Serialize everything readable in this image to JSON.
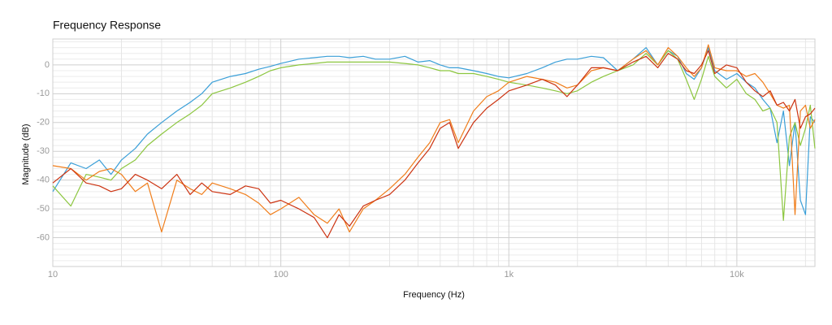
{
  "chart_data": {
    "type": "line",
    "title": "Frequency Response",
    "xlabel": "Frequency (Hz)",
    "ylabel": "Magnitude (dB)",
    "log_x": true,
    "grid": true,
    "xlim": [
      10,
      22000
    ],
    "ylim": [
      -70,
      9
    ],
    "xticks": [
      10,
      100,
      {
        "value": 1000,
        "label": "1k"
      },
      {
        "value": 10000,
        "label": "10k"
      }
    ],
    "yticks": [
      0,
      -10,
      -20,
      -30,
      -40,
      -50,
      -60
    ],
    "minor_xticks": [
      20,
      30,
      40,
      50,
      60,
      70,
      80,
      90,
      200,
      300,
      400,
      500,
      600,
      700,
      800,
      900,
      2000,
      3000,
      4000,
      5000,
      6000,
      7000,
      8000,
      9000,
      20000
    ],
    "minor_yticks": [
      8,
      6,
      4,
      2,
      -2,
      -4,
      -6,
      -8,
      -12,
      -14,
      -16,
      -18,
      -22,
      -24,
      -26,
      -28,
      -32,
      -34,
      -36,
      -38,
      -42,
      -44,
      -46,
      -48,
      -52,
      -54,
      -56,
      -58,
      -62,
      -64,
      -66,
      -68
    ],
    "x": [
      10,
      12,
      14,
      16,
      18,
      20,
      23,
      26,
      30,
      35,
      40,
      45,
      50,
      60,
      70,
      80,
      90,
      100,
      120,
      140,
      160,
      180,
      200,
      230,
      260,
      300,
      350,
      400,
      450,
      500,
      550,
      600,
      700,
      800,
      900,
      1000,
      1200,
      1400,
      1600,
      1800,
      2000,
      2300,
      2600,
      3000,
      3500,
      4000,
      4500,
      5000,
      5500,
      6000,
      6500,
      7000,
      7500,
      8000,
      9000,
      10000,
      11000,
      12000,
      13000,
      14000,
      15000,
      16000,
      17000,
      18000,
      19000,
      20000,
      21000,
      22000
    ],
    "series": [
      {
        "color": "#3a9fd8",
        "values": [
          -44,
          -34,
          -36,
          -33,
          -38,
          -33,
          -29,
          -24,
          -20,
          -16,
          -13,
          -10,
          -6,
          -4,
          -3,
          -1.5,
          -0.5,
          0.5,
          2,
          2.5,
          3,
          3,
          2.5,
          3,
          2,
          2,
          3,
          1,
          1.5,
          0,
          -1,
          -1,
          -2,
          -3,
          -4,
          -4.5,
          -3,
          -1,
          1,
          2,
          2,
          3,
          2.5,
          -2,
          2,
          6,
          0,
          5,
          3,
          -3,
          -5,
          -1,
          6,
          -2,
          -5,
          -3,
          -6,
          -8,
          -12,
          -15,
          -27,
          -16,
          -35,
          -20,
          -47,
          -52,
          -18,
          -20
        ]
      },
      {
        "color": "#8cc63f",
        "values": [
          -42,
          -49,
          -38,
          -39,
          -40,
          -36,
          -33,
          -28,
          -24,
          -20,
          -17,
          -14,
          -10,
          -8,
          -6,
          -4,
          -2,
          -1,
          0,
          0.5,
          1,
          1,
          1,
          1,
          1,
          1,
          0.5,
          0,
          -1,
          -2,
          -2,
          -3,
          -3,
          -4,
          -5,
          -6,
          -7,
          -8,
          -9,
          -10,
          -9,
          -6,
          -4,
          -2,
          0,
          4,
          0,
          5,
          2,
          -5,
          -12,
          -5,
          3,
          -4,
          -8,
          -5,
          -10,
          -12,
          -16,
          -15,
          -20,
          -54,
          -25,
          -20,
          -28,
          -22,
          -14,
          -29
        ]
      },
      {
        "color": "#f07d1a",
        "values": [
          -35,
          -36,
          -40,
          -37,
          -36,
          -38,
          -44,
          -41,
          -58,
          -40,
          -43,
          -45,
          -41,
          -43,
          -45,
          -48,
          -52,
          -50,
          -46,
          -52,
          -55,
          -50,
          -58,
          -50,
          -47,
          -43,
          -38,
          -32,
          -27,
          -20,
          -19,
          -27,
          -16,
          -11,
          -9,
          -6,
          -4,
          -5,
          -6,
          -8,
          -7,
          -2,
          -1,
          -2,
          2,
          5,
          0,
          6,
          3,
          -1,
          -4,
          -1,
          7,
          -1,
          -2,
          -2,
          -4,
          -3,
          -6,
          -10,
          -14,
          -15,
          -14,
          -52,
          -16,
          -14,
          -22,
          -19
        ]
      },
      {
        "color": "#cc3311",
        "values": [
          -41,
          -36,
          -41,
          -42,
          -44,
          -43,
          -38,
          -40,
          -43,
          -38,
          -45,
          -41,
          -44,
          -45,
          -42,
          -43,
          -48,
          -47,
          -50,
          -53,
          -60,
          -52,
          -56,
          -49,
          -47,
          -45,
          -40,
          -34,
          -29,
          -22,
          -20,
          -29,
          -20,
          -15,
          -12,
          -9,
          -7,
          -5,
          -7,
          -11,
          -7,
          -1,
          -1,
          -2,
          1,
          3,
          -1,
          4,
          2,
          -2,
          -3,
          0,
          5,
          -3,
          0,
          -1,
          -6,
          -9,
          -11,
          -9,
          -14,
          -13,
          -16,
          -12,
          -22,
          -18,
          -17,
          -15
        ]
      }
    ]
  }
}
